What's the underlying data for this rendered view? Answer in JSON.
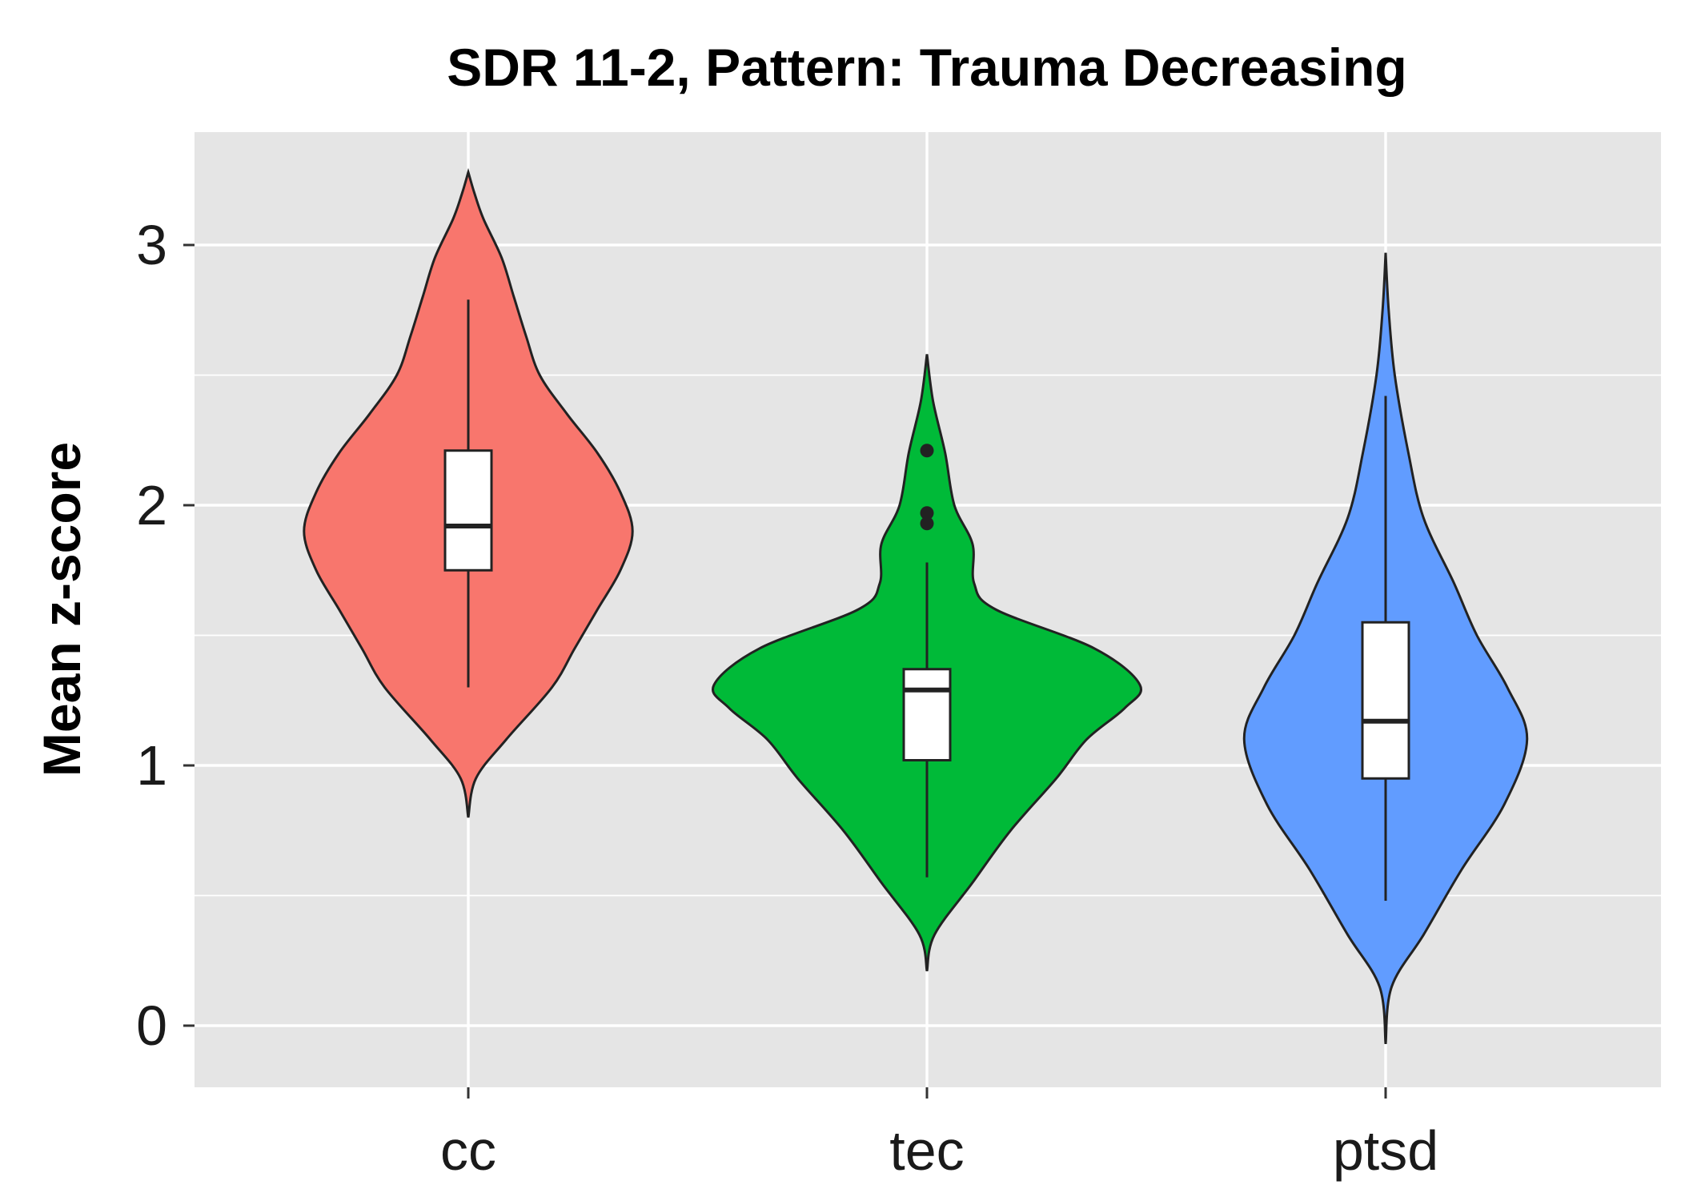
{
  "chart_data": {
    "type": "violin",
    "title": "SDR 11-2, Pattern: Trauma Decreasing",
    "xlabel": "",
    "ylabel": "Mean z-score",
    "ylim": [
      -0.23,
      3.45
    ],
    "yticks": [
      0,
      1,
      2,
      3
    ],
    "ytick_labels": [
      "0",
      "1",
      "2",
      "3"
    ],
    "grid": true,
    "legend": "none",
    "categories": [
      "cc",
      "tec",
      "ptsd"
    ],
    "series": [
      {
        "category": "cc",
        "color": "#F8766D",
        "violin_range": [
          0.8,
          3.28
        ],
        "density_profile": [
          {
            "y": 0.8,
            "w": 0.0
          },
          {
            "y": 0.95,
            "w": 0.05
          },
          {
            "y": 1.1,
            "w": 0.25
          },
          {
            "y": 1.3,
            "w": 0.55
          },
          {
            "y": 1.45,
            "w": 0.7
          },
          {
            "y": 1.6,
            "w": 0.85
          },
          {
            "y": 1.75,
            "w": 1.0
          },
          {
            "y": 1.9,
            "w": 1.08
          },
          {
            "y": 2.05,
            "w": 1.0
          },
          {
            "y": 2.2,
            "w": 0.85
          },
          {
            "y": 2.35,
            "w": 0.65
          },
          {
            "y": 2.5,
            "w": 0.47
          },
          {
            "y": 2.65,
            "w": 0.38
          },
          {
            "y": 2.8,
            "w": 0.3
          },
          {
            "y": 2.95,
            "w": 0.22
          },
          {
            "y": 3.1,
            "w": 0.1
          },
          {
            "y": 3.2,
            "w": 0.04
          },
          {
            "y": 3.28,
            "w": 0.0
          }
        ],
        "box": {
          "whisker_low": 1.3,
          "q1": 1.75,
          "median": 1.92,
          "q3": 2.21,
          "whisker_high": 2.79
        },
        "outliers": []
      },
      {
        "category": "tec",
        "color": "#00BA38",
        "violin_range": [
          0.21,
          2.58
        ],
        "density_profile": [
          {
            "y": 0.21,
            "w": 0.0
          },
          {
            "y": 0.35,
            "w": 0.05
          },
          {
            "y": 0.55,
            "w": 0.3
          },
          {
            "y": 0.75,
            "w": 0.55
          },
          {
            "y": 0.95,
            "w": 0.85
          },
          {
            "y": 1.1,
            "w": 1.05
          },
          {
            "y": 1.22,
            "w": 1.3
          },
          {
            "y": 1.31,
            "w": 1.4
          },
          {
            "y": 1.45,
            "w": 1.1
          },
          {
            "y": 1.6,
            "w": 0.45
          },
          {
            "y": 1.7,
            "w": 0.31
          },
          {
            "y": 1.85,
            "w": 0.3
          },
          {
            "y": 2.0,
            "w": 0.18
          },
          {
            "y": 2.2,
            "w": 0.12
          },
          {
            "y": 2.4,
            "w": 0.04
          },
          {
            "y": 2.58,
            "w": 0.0
          }
        ],
        "box": {
          "whisker_low": 0.57,
          "q1": 1.02,
          "median": 1.29,
          "q3": 1.37,
          "whisker_high": 1.78
        },
        "outliers": [
          1.93,
          1.97,
          2.21
        ]
      },
      {
        "category": "ptsd",
        "color": "#619CFF",
        "violin_range": [
          -0.07,
          2.97
        ],
        "density_profile": [
          {
            "y": -0.07,
            "w": 0.0
          },
          {
            "y": 0.15,
            "w": 0.04
          },
          {
            "y": 0.35,
            "w": 0.25
          },
          {
            "y": 0.6,
            "w": 0.5
          },
          {
            "y": 0.85,
            "w": 0.78
          },
          {
            "y": 1.1,
            "w": 0.93
          },
          {
            "y": 1.3,
            "w": 0.8
          },
          {
            "y": 1.5,
            "w": 0.6
          },
          {
            "y": 1.7,
            "w": 0.45
          },
          {
            "y": 1.95,
            "w": 0.25
          },
          {
            "y": 2.2,
            "w": 0.15
          },
          {
            "y": 2.5,
            "w": 0.06
          },
          {
            "y": 2.75,
            "w": 0.02
          },
          {
            "y": 2.97,
            "w": 0.0
          }
        ],
        "box": {
          "whisker_low": 0.48,
          "q1": 0.95,
          "median": 1.17,
          "q3": 1.55,
          "whisker_high": 2.42
        },
        "outliers": []
      }
    ]
  },
  "style": {
    "panel_bg": "#E5E5E5",
    "grid_color": "#FFFFFF",
    "outline_color": "#222222",
    "box_fill": "#FFFFFF"
  }
}
